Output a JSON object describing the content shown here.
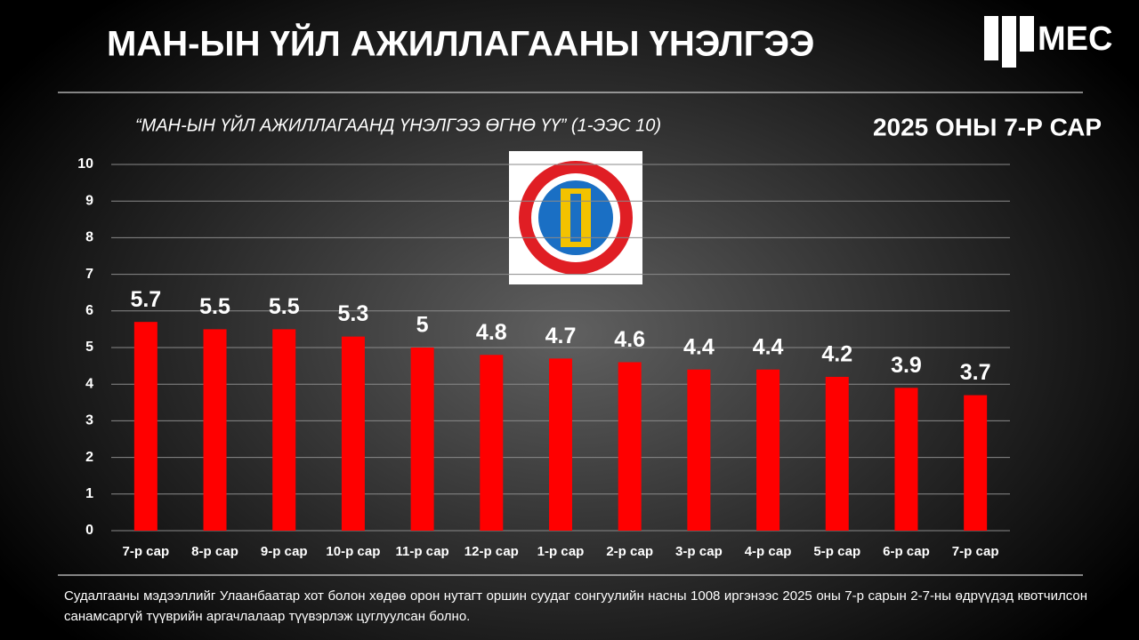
{
  "header": {
    "logo": "MEC",
    "period": "2025 ОНЫ 7-Р САР"
  },
  "chart_data": {
    "type": "bar",
    "title": "МАН-ЫН ҮЙЛ АЖИЛЛАГААНЫ ҮНЭЛГЭЭ",
    "subtitle": "“МАН-ЫН ҮЙЛ АЖИЛЛАГААНД ҮНЭЛГЭЭ ӨГНӨ ҮҮ” (1-ЭЭС 10)",
    "categories": [
      "7-р сар",
      "8-р сар",
      "9-р сар",
      "10-р сар",
      "11-р сар",
      "12-р сар",
      "1-р сар",
      "2-р сар",
      "3-р сар",
      "4-р сар",
      "5-р сар",
      "6-р сар",
      "7-р сар"
    ],
    "values": [
      5.7,
      5.5,
      5.5,
      5.3,
      5,
      4.8,
      4.7,
      4.6,
      4.4,
      4.4,
      4.2,
      3.9,
      3.7
    ],
    "color": "#ff0000",
    "ylim": [
      0,
      10
    ],
    "yticks": [
      0,
      1,
      2,
      3,
      4,
      5,
      6,
      7,
      8,
      9,
      10
    ],
    "grid": true
  },
  "footnote": "Судалгааны мэдээллийг Улаанбаатар хот болон хөдөө орон нутагт оршин суудаг сонгуулийн насны 1008 иргэнээс 2025 оны 7-р сарын 2-7-ны өдрүүдэд квотчилсон санамсаргүй түүврийн аргачлалаар түүвэрлэж цуглуулсан болно."
}
